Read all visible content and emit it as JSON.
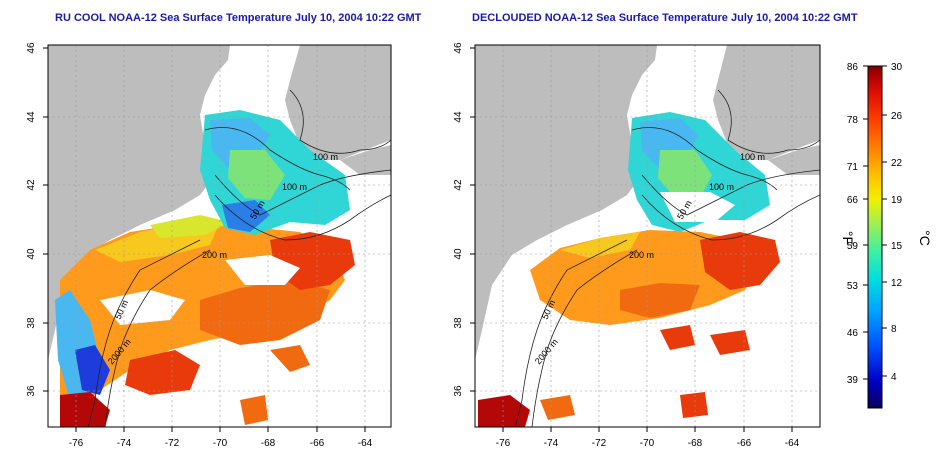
{
  "titles": {
    "left": "RU COOL NOAA-12 Sea Surface Temperature July 10, 2004 10:22 GMT",
    "right": "DECLOUDED NOAA-12 Sea Surface Temperature July 10, 2004 10:22 GMT"
  },
  "axes": {
    "lon_ticks": [
      "-76",
      "-74",
      "-72",
      "-70",
      "-68",
      "-66",
      "-64"
    ],
    "lat_ticks": [
      "46",
      "44",
      "42",
      "40",
      "38",
      "36"
    ]
  },
  "isobaths": [
    "100 m",
    "100 m",
    "50 m",
    "200 m",
    "50 m",
    "2000 m"
  ],
  "colorbar": {
    "fahrenheit_ticks": [
      "86",
      "78",
      "71",
      "66",
      "59",
      "53",
      "46",
      "39"
    ],
    "celsius_ticks": [
      "30",
      "26",
      "22",
      "19",
      "15",
      "12",
      "8",
      "4"
    ],
    "f_label": "°F",
    "c_label": "°C",
    "colors": [
      "#08005a",
      "#0000c8",
      "#0050ff",
      "#00a0ff",
      "#00e0e0",
      "#40f0a0",
      "#a0f050",
      "#f0f000",
      "#ffc000",
      "#ff8000",
      "#ff4000",
      "#e01000",
      "#b00000",
      "#7a0000"
    ]
  },
  "land_color": "#bdbdbd"
}
